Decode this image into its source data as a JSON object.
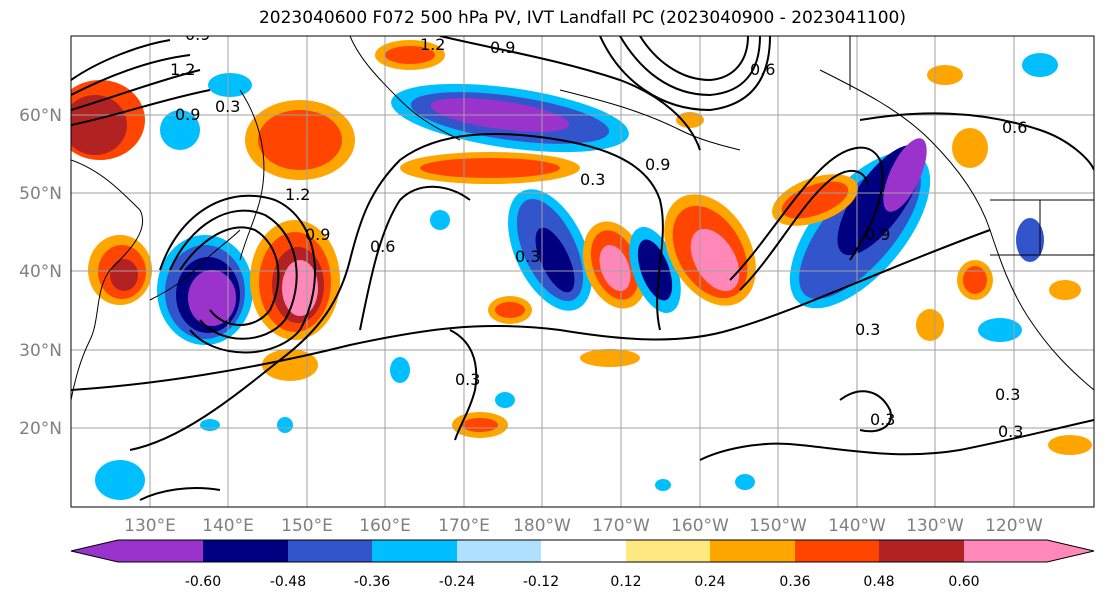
{
  "title": "2023040600 F072 500 hPa PV, IVT Landfall PC (2023040900 - 2023041100)",
  "lat_labels": [
    "60°N",
    "50°N",
    "40°N",
    "30°N",
    "20°N"
  ],
  "lon_labels": [
    "130°E",
    "140°E",
    "150°E",
    "160°E",
    "170°E",
    "180°W",
    "170°W",
    "160°W",
    "150°W",
    "140°W",
    "130°W",
    "120°W"
  ],
  "colorbar": {
    "colors": [
      "#9933cc",
      "#000080",
      "#3355cc",
      "#00bfff",
      "#b0e0ff",
      "#ffffff",
      "#ffe880",
      "#ffa500",
      "#ff4500",
      "#b22222",
      "#ff88b8"
    ],
    "tick_labels": [
      "-0.60",
      "-0.48",
      "-0.36",
      "-0.24",
      "-0.12",
      "0.12",
      "0.24",
      "0.36",
      "0.48",
      "0.60"
    ]
  },
  "contour_labels": [
    "1.2",
    "0.9",
    "0.9",
    "1.2",
    "0.3",
    "0.9",
    "1.2",
    "0.9",
    "0.6",
    "0.3",
    "0.3",
    "0.9",
    "0.6",
    "0.9",
    "0.3",
    "0.3",
    "0.3",
    "0.3",
    "0.3",
    "0.6"
  ]
}
